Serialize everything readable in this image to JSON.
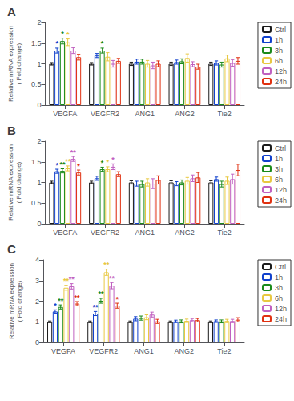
{
  "chart_data": [
    {
      "type": "bar",
      "title": "A",
      "categories": [
        "VEGFA",
        "VEGFR2",
        "ANG1",
        "ANG2",
        "Tie2"
      ],
      "ylabel": "Relative mRNA expression\n( Fold change)",
      "series": [
        {
          "name": "Ctrl",
          "color": "#1a1a1a",
          "values": [
            1.0,
            1.0,
            1.0,
            1.0,
            1.0
          ],
          "errors": [
            0.03,
            0.03,
            0.04,
            0.04,
            0.04
          ]
        },
        {
          "name": "1h",
          "color": "#1040CC",
          "values": [
            1.32,
            1.2,
            1.05,
            1.04,
            1.02
          ],
          "errors": [
            0.06,
            0.05,
            0.06,
            0.05,
            0.05
          ]
        },
        {
          "name": "3h",
          "color": "#1a8a1a",
          "values": [
            1.55,
            1.32,
            1.05,
            1.06,
            0.98
          ],
          "errors": [
            0.07,
            0.06,
            0.06,
            0.06,
            0.06
          ]
        },
        {
          "name": "6h",
          "color": "#E8C840",
          "values": [
            1.52,
            1.17,
            1.0,
            1.14,
            1.13
          ],
          "errors": [
            0.08,
            0.1,
            0.08,
            0.1,
            0.08
          ]
        },
        {
          "name": "12h",
          "color": "#C060C0",
          "values": [
            1.32,
            1.0,
            0.96,
            0.99,
            1.02
          ],
          "errors": [
            0.07,
            0.08,
            0.08,
            0.06,
            0.08
          ]
        },
        {
          "name": "24h",
          "color": "#E03010",
          "values": [
            1.16,
            1.07,
            1.0,
            0.93,
            1.07
          ],
          "errors": [
            0.07,
            0.06,
            0.07,
            0.06,
            0.08
          ]
        }
      ],
      "annotations": [
        {
          "category": "VEGFA",
          "series": "1h",
          "text": "*"
        },
        {
          "category": "VEGFA",
          "series": "3h",
          "text": "*"
        },
        {
          "category": "VEGFA",
          "series": "6h",
          "text": "*"
        },
        {
          "category": "VEGFR2",
          "series": "3h",
          "text": "*"
        }
      ],
      "ylim": [
        0,
        2
      ],
      "yticks": [
        0,
        0.5,
        1,
        1.5,
        2
      ],
      "grid": false,
      "legend": "right"
    },
    {
      "type": "bar",
      "title": "B",
      "categories": [
        "VEGFA",
        "VEGFR2",
        "ANG1",
        "ANG2",
        "Tie2"
      ],
      "ylabel": "Relative mRNA expression\n( Fold change)",
      "series": [
        {
          "name": "Ctrl",
          "color": "#1a1a1a",
          "values": [
            1.0,
            1.0,
            1.0,
            1.0,
            1.0
          ],
          "errors": [
            0.03,
            0.03,
            0.04,
            0.04,
            0.04
          ]
        },
        {
          "name": "1h",
          "color": "#1040CC",
          "values": [
            1.27,
            1.1,
            0.97,
            0.97,
            1.08
          ],
          "errors": [
            0.05,
            0.05,
            0.06,
            0.05,
            0.05
          ]
        },
        {
          "name": "3h",
          "color": "#1a8a1a",
          "values": [
            1.28,
            1.32,
            0.96,
            1.0,
            0.96
          ],
          "errors": [
            0.05,
            0.05,
            0.07,
            0.06,
            0.07
          ]
        },
        {
          "name": "6h",
          "color": "#E8C840",
          "values": [
            1.34,
            1.32,
            1.0,
            1.04,
            1.04
          ],
          "errors": [
            0.06,
            0.06,
            0.09,
            0.08,
            0.09
          ]
        },
        {
          "name": "12h",
          "color": "#C060C0",
          "values": [
            1.57,
            1.38,
            0.97,
            1.1,
            1.08
          ],
          "errors": [
            0.06,
            0.07,
            0.12,
            0.08,
            0.12
          ]
        },
        {
          "name": "24h",
          "color": "#E03010",
          "values": [
            1.24,
            1.2,
            1.06,
            1.12,
            1.3
          ],
          "errors": [
            0.06,
            0.06,
            0.1,
            0.12,
            0.14
          ]
        }
      ],
      "annotations": [
        {
          "category": "VEGFA",
          "series": "1h",
          "text": "*"
        },
        {
          "category": "VEGFA",
          "series": "3h",
          "text": "**"
        },
        {
          "category": "VEGFA",
          "series": "6h",
          "text": "**"
        },
        {
          "category": "VEGFA",
          "series": "12h",
          "text": "**"
        },
        {
          "category": "VEGFA",
          "series": "24h",
          "text": "*"
        },
        {
          "category": "VEGFR2",
          "series": "3h",
          "text": "*"
        },
        {
          "category": "VEGFR2",
          "series": "6h",
          "text": "*"
        },
        {
          "category": "VEGFR2",
          "series": "12h",
          "text": "*"
        }
      ],
      "ylim": [
        0,
        2
      ],
      "yticks": [
        0,
        0.5,
        1,
        1.5,
        2
      ],
      "grid": false,
      "legend": "right"
    },
    {
      "type": "bar",
      "title": "C",
      "categories": [
        "VEGFA",
        "VEGFR2",
        "ANG1",
        "ANG2",
        "Tie2"
      ],
      "ylabel": "Relative mRNA expression\n( Fold change)",
      "series": [
        {
          "name": "Ctrl",
          "color": "#1a1a1a",
          "values": [
            1.0,
            1.0,
            1.0,
            1.0,
            1.0
          ],
          "errors": [
            0.04,
            0.04,
            0.04,
            0.04,
            0.04
          ]
        },
        {
          "name": "1h",
          "color": "#1040CC",
          "values": [
            1.5,
            1.4,
            1.15,
            1.02,
            1.03
          ],
          "errors": [
            0.08,
            0.1,
            0.1,
            0.06,
            0.06
          ]
        },
        {
          "name": "3h",
          "color": "#1a8a1a",
          "values": [
            1.72,
            2.02,
            1.18,
            1.02,
            1.02
          ],
          "errors": [
            0.1,
            0.12,
            0.1,
            0.07,
            0.07
          ]
        },
        {
          "name": "6h",
          "color": "#E8C840",
          "values": [
            2.65,
            3.4,
            1.22,
            1.05,
            1.04
          ],
          "errors": [
            0.12,
            0.15,
            0.12,
            0.08,
            0.08
          ]
        },
        {
          "name": "12h",
          "color": "#C060C0",
          "values": [
            2.72,
            2.75,
            1.35,
            1.08,
            1.04
          ],
          "errors": [
            0.13,
            0.15,
            0.12,
            0.08,
            0.08
          ]
        },
        {
          "name": "24h",
          "color": "#E03010",
          "values": [
            1.88,
            1.78,
            1.02,
            1.08,
            1.1
          ],
          "errors": [
            0.1,
            0.12,
            0.1,
            0.08,
            0.1
          ]
        }
      ],
      "annotations": [
        {
          "category": "VEGFA",
          "series": "1h",
          "text": "*"
        },
        {
          "category": "VEGFA",
          "series": "3h",
          "text": "**"
        },
        {
          "category": "VEGFA",
          "series": "6h",
          "text": "**"
        },
        {
          "category": "VEGFA",
          "series": "12h",
          "text": "**"
        },
        {
          "category": "VEGFA",
          "series": "24h",
          "text": "**"
        },
        {
          "category": "VEGFR2",
          "series": "1h",
          "text": "**"
        },
        {
          "category": "VEGFR2",
          "series": "3h",
          "text": "**"
        },
        {
          "category": "VEGFR2",
          "series": "6h",
          "text": "**"
        },
        {
          "category": "VEGFR2",
          "series": "12h",
          "text": "**"
        },
        {
          "category": "VEGFR2",
          "series": "24h",
          "text": "*"
        }
      ],
      "ylim": [
        0,
        4
      ],
      "yticks": [
        0,
        1,
        2,
        3,
        4
      ],
      "grid": false,
      "legend": "right"
    }
  ]
}
